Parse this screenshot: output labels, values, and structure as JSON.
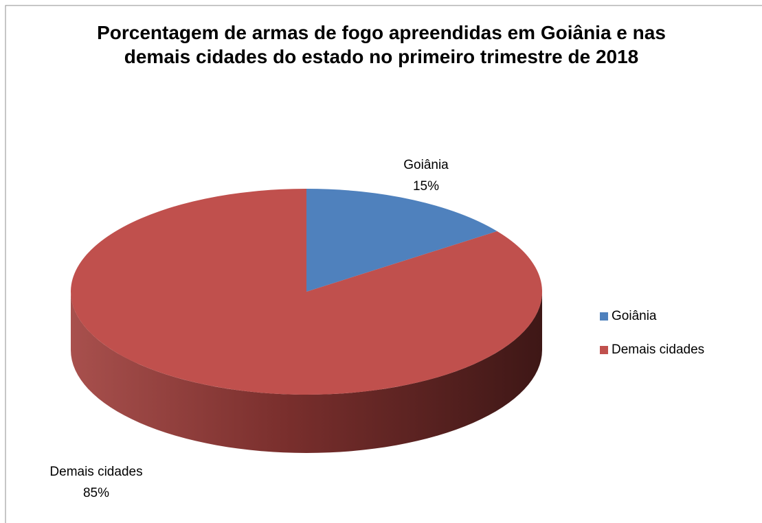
{
  "chart_data": {
    "type": "pie",
    "title": "Porcentagem de armas de fogo apreendidas em Goiânia e nas demais cidades do estado no primeiro trimestre de 2018",
    "categories": [
      "Goiânia",
      "Demais cidades"
    ],
    "values": [
      15,
      85
    ],
    "value_labels": [
      "15%",
      "85%"
    ],
    "colors": [
      "#4f81bd",
      "#c0504d"
    ],
    "legend": "right"
  }
}
